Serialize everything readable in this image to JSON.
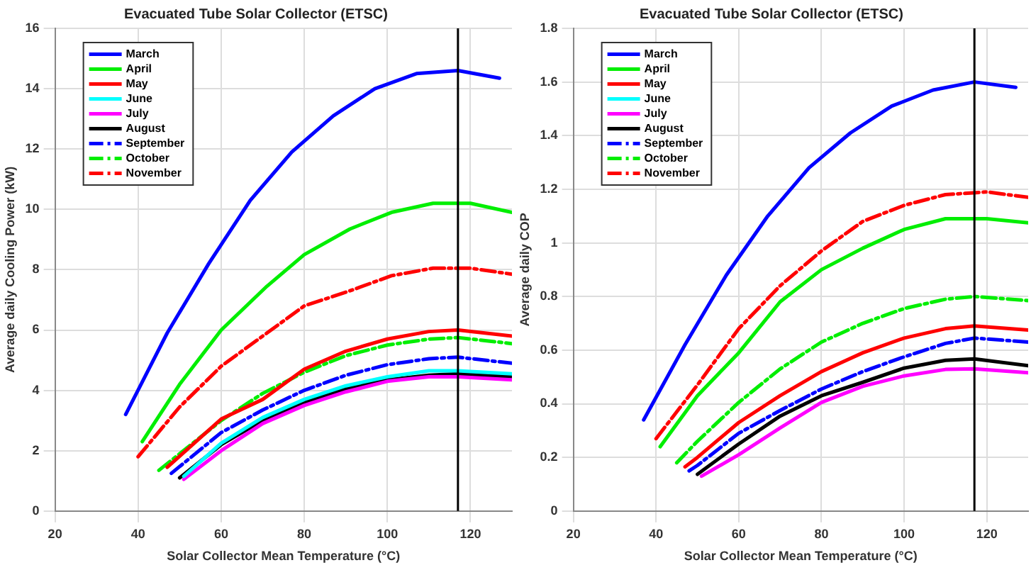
{
  "chart_data": [
    {
      "type": "line",
      "title": "Evacuated Tube Solar Collector (ETSC)",
      "xlabel": "Solar Collector Mean Temperature (°C)",
      "ylabel": "Average daily Cooling Power (kW)",
      "xlim": [
        20,
        130
      ],
      "xticks": [
        20,
        40,
        60,
        80,
        100,
        120
      ],
      "ylim": [
        0,
        16
      ],
      "yticks": [
        0,
        2,
        4,
        6,
        8,
        10,
        12,
        14,
        16
      ],
      "grid": true,
      "legend": "top left",
      "marker": "none",
      "ref_lines": [
        {
          "axis": "x",
          "value": 117,
          "color": "#000000"
        }
      ],
      "series": [
        {
          "name": "March",
          "color": "#0000ff",
          "line_style": "solid",
          "x": [
            37,
            47,
            57,
            67,
            77,
            87,
            97,
            107,
            117,
            127
          ],
          "values": [
            3.2,
            5.9,
            8.2,
            10.3,
            11.9,
            13.1,
            14.0,
            14.5,
            14.6,
            14.35
          ]
        },
        {
          "name": "April",
          "color": "#00ee00",
          "line_style": "solid",
          "x": [
            41,
            50,
            60,
            71,
            80,
            91,
            101,
            111,
            120,
            130
          ],
          "values": [
            2.3,
            4.2,
            6.0,
            7.45,
            8.5,
            9.35,
            9.9,
            10.2,
            10.2,
            9.9
          ]
        },
        {
          "name": "May",
          "color": "#ff0000",
          "line_style": "solid",
          "x": [
            47,
            60,
            70,
            80,
            90,
            100,
            110,
            117,
            130
          ],
          "values": [
            1.45,
            3.05,
            3.7,
            4.7,
            5.3,
            5.7,
            5.95,
            6.0,
            5.8
          ]
        },
        {
          "name": "June",
          "color": "#00ffff",
          "line_style": "solid",
          "x": [
            51,
            60,
            70,
            80,
            90,
            100,
            110,
            117,
            130
          ],
          "values": [
            1.15,
            2.25,
            3.1,
            3.7,
            4.15,
            4.45,
            4.65,
            4.65,
            4.55
          ]
        },
        {
          "name": "July",
          "color": "#ff00ff",
          "line_style": "solid",
          "x": [
            51,
            60,
            70,
            80,
            90,
            100,
            110,
            117,
            130
          ],
          "values": [
            1.05,
            2.0,
            2.9,
            3.5,
            3.95,
            4.3,
            4.45,
            4.45,
            4.35
          ]
        },
        {
          "name": "August",
          "color": "#000000",
          "line_style": "solid",
          "x": [
            50,
            60,
            70,
            80,
            90,
            100,
            110,
            117,
            130
          ],
          "values": [
            1.1,
            2.2,
            3.0,
            3.6,
            4.05,
            4.35,
            4.5,
            4.55,
            4.45
          ]
        },
        {
          "name": "September",
          "color": "#0000ff",
          "line_style": "dashed",
          "x": [
            48,
            60,
            70,
            80,
            90,
            100,
            110,
            117,
            130
          ],
          "values": [
            1.25,
            2.6,
            3.35,
            4.0,
            4.5,
            4.85,
            5.05,
            5.1,
            4.9
          ]
        },
        {
          "name": "October",
          "color": "#00ee00",
          "line_style": "dashed",
          "x": [
            45,
            60,
            70,
            80,
            90,
            100,
            110,
            117,
            130
          ],
          "values": [
            1.35,
            3.0,
            3.9,
            4.6,
            5.15,
            5.5,
            5.7,
            5.75,
            5.55
          ]
        },
        {
          "name": "November",
          "color": "#ff0000",
          "line_style": "dashed",
          "x": [
            40,
            50,
            60,
            71,
            80,
            91,
            101,
            111,
            120,
            130
          ],
          "values": [
            1.8,
            3.45,
            4.8,
            5.9,
            6.8,
            7.3,
            7.8,
            8.05,
            8.05,
            7.85
          ]
        }
      ]
    },
    {
      "type": "line",
      "title": "Evacuated Tube Solar Collector (ETSC)",
      "xlabel": "Solar Collector Mean Temperature (°C)",
      "ylabel": "Average daily COP",
      "xlim": [
        20,
        130
      ],
      "xticks": [
        20,
        40,
        60,
        80,
        100,
        120
      ],
      "ylim": [
        0,
        1.8
      ],
      "yticks": [
        0,
        0.2,
        0.4,
        0.6,
        0.8,
        1,
        1.2,
        1.4,
        1.6,
        1.8
      ],
      "grid": true,
      "legend": "top left",
      "marker": "none",
      "ref_lines": [
        {
          "axis": "x",
          "value": 117,
          "color": "#000000"
        }
      ],
      "series": [
        {
          "name": "March",
          "color": "#0000ff",
          "line_style": "solid",
          "x": [
            37,
            47,
            57,
            67,
            77,
            87,
            97,
            107,
            117,
            127
          ],
          "values": [
            0.34,
            0.62,
            0.88,
            1.1,
            1.28,
            1.41,
            1.51,
            1.57,
            1.6,
            1.58
          ]
        },
        {
          "name": "April",
          "color": "#00ee00",
          "line_style": "solid",
          "x": [
            41,
            50,
            60,
            70,
            80,
            90,
            100,
            110,
            120,
            130
          ],
          "values": [
            0.24,
            0.43,
            0.59,
            0.78,
            0.9,
            0.98,
            1.05,
            1.09,
            1.09,
            1.075
          ]
        },
        {
          "name": "May",
          "color": "#ff0000",
          "line_style": "solid",
          "x": [
            47,
            50,
            60,
            70,
            80,
            90,
            100,
            110,
            117,
            130
          ],
          "values": [
            0.165,
            0.2,
            0.33,
            0.43,
            0.52,
            0.59,
            0.645,
            0.68,
            0.69,
            0.675
          ]
        },
        {
          "name": "June",
          "color": "#00ffff",
          "line_style": "solid"
        },
        {
          "name": "July",
          "color": "#ff00ff",
          "line_style": "solid",
          "x": [
            51,
            60,
            70,
            80,
            90,
            100,
            110,
            117,
            130
          ],
          "values": [
            0.13,
            0.21,
            0.31,
            0.405,
            0.465,
            0.504,
            0.528,
            0.53,
            0.516
          ]
        },
        {
          "name": "August",
          "color": "#000000",
          "line_style": "solid",
          "x": [
            50,
            60,
            70,
            80,
            90,
            100,
            110,
            117,
            130
          ],
          "values": [
            0.137,
            0.25,
            0.354,
            0.43,
            0.48,
            0.533,
            0.562,
            0.567,
            0.542
          ]
        },
        {
          "name": "September",
          "color": "#0000ff",
          "line_style": "dashed",
          "x": [
            48,
            50,
            60,
            70,
            80,
            90,
            100,
            110,
            117,
            130
          ],
          "values": [
            0.15,
            0.17,
            0.29,
            0.375,
            0.455,
            0.52,
            0.575,
            0.625,
            0.645,
            0.63
          ]
        },
        {
          "name": "October",
          "color": "#00ee00",
          "line_style": "dashed",
          "x": [
            45,
            50,
            60,
            70,
            80,
            90,
            100,
            110,
            117,
            130
          ],
          "values": [
            0.18,
            0.26,
            0.405,
            0.53,
            0.63,
            0.7,
            0.755,
            0.79,
            0.8,
            0.785
          ]
        },
        {
          "name": "November",
          "color": "#ff0000",
          "line_style": "dashed",
          "x": [
            40,
            50,
            60,
            70,
            80,
            90,
            100,
            110,
            120,
            130
          ],
          "values": [
            0.27,
            0.47,
            0.68,
            0.84,
            0.97,
            1.08,
            1.14,
            1.18,
            1.19,
            1.17
          ]
        }
      ]
    }
  ]
}
